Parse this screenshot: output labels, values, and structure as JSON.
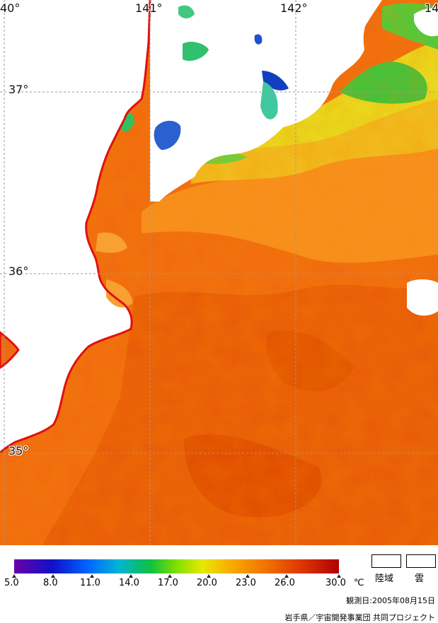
{
  "map": {
    "longitude_labels": [
      "40°",
      "141°",
      "142°",
      "14"
    ],
    "latitude_labels": [
      "37°",
      "36°",
      "35°"
    ],
    "colors": {
      "land": "#ffffff",
      "cloud": "#ffffff",
      "coastline": "#e01010",
      "grid": "#9a9a9a",
      "warm_sea": "#f06a10",
      "hot_sea": "#e04a00",
      "mid_sea": "#f8a020",
      "cool_sea": "#e8d820",
      "green_sea": "#40d040",
      "cold_sea": "#1060d0"
    }
  },
  "legend": {
    "tick_labels": [
      "5.0",
      "8.0",
      "11.0",
      "14.0",
      "17.0",
      "20.0",
      "23.0",
      "26.0",
      "30.0"
    ],
    "unit": "℃",
    "land_label": "陸域",
    "cloud_label": "雲",
    "observation_date": "観測日:2005年08月15日",
    "credit": "岩手県／宇宙開発事業団 共同プロジェクト"
  }
}
